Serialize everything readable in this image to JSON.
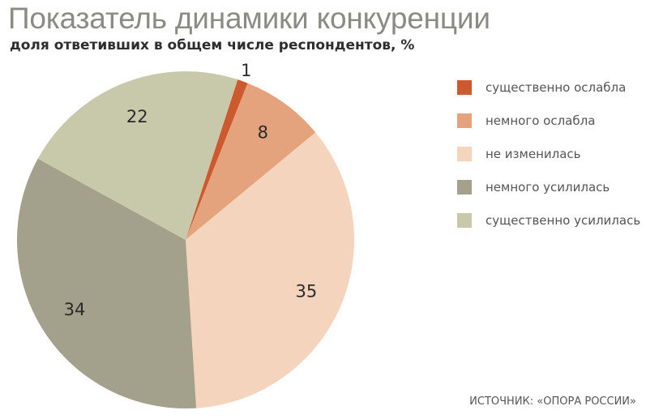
{
  "chart_data": {
    "type": "pie",
    "title": "Показатель динамики конкуренции",
    "subtitle": "доля ответивших в общем числе респондентов, %",
    "categories": [
      "существенно ослабла",
      "немного ослабла",
      "не изменилась",
      "немного усилилась",
      "существенно усилилась"
    ],
    "values": [
      1,
      8,
      35,
      34,
      22
    ],
    "colors": [
      "#cc5a2e",
      "#e4a27d",
      "#f5d4bd",
      "#a3a08c",
      "#c8c8ab"
    ],
    "legend_position": "right",
    "source": "ИСТОЧНИК: «ОПОРА РОССИИ»"
  }
}
